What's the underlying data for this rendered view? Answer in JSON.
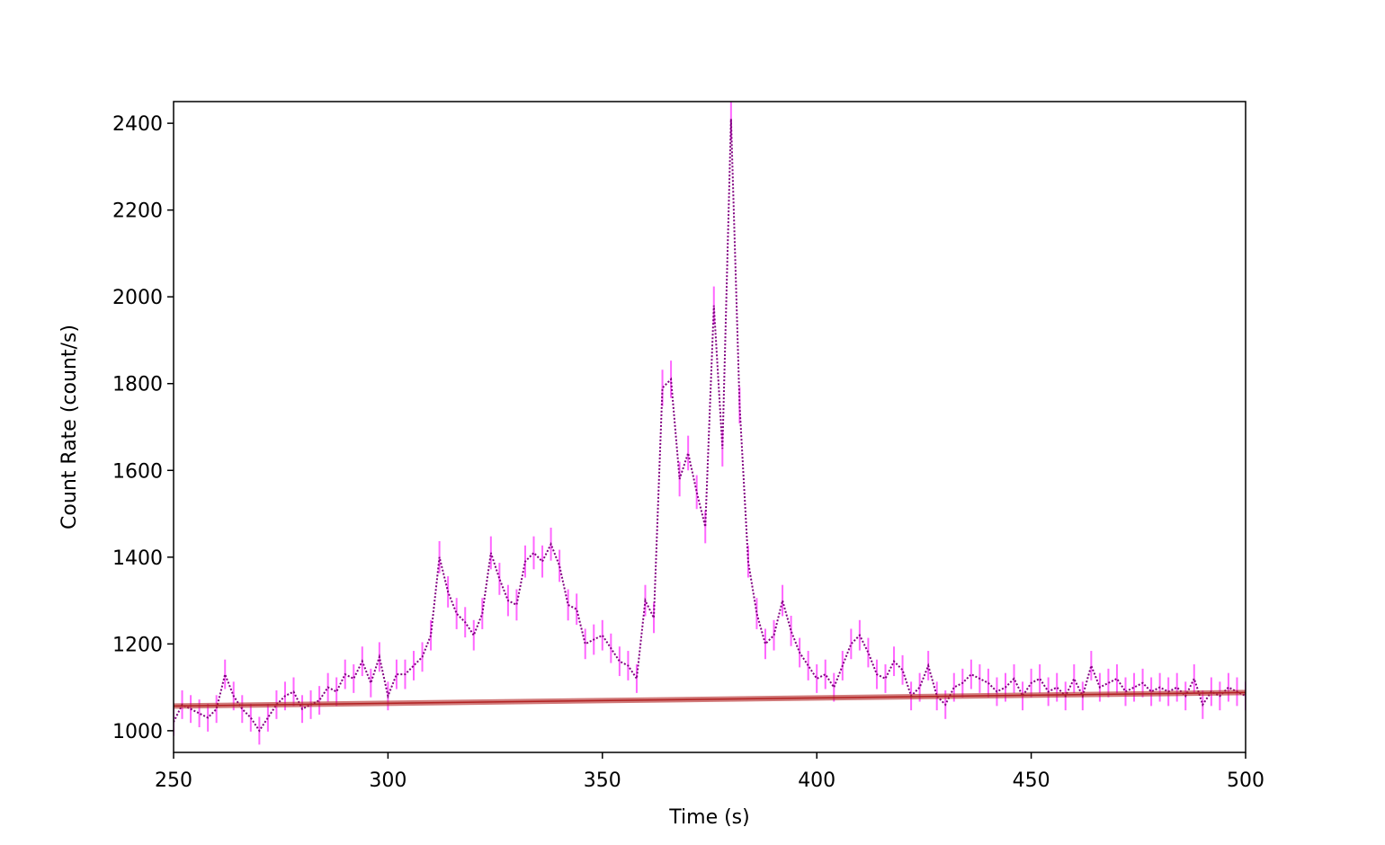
{
  "chart_data": {
    "type": "line",
    "xlabel": "Time (s)",
    "ylabel": "Count Rate (count/s)",
    "xlim": [
      250,
      500
    ],
    "ylim": [
      950,
      2450
    ],
    "xticks": [
      250,
      300,
      350,
      400,
      450,
      500
    ],
    "yticks": [
      1000,
      1200,
      1400,
      1600,
      1800,
      2000,
      2200,
      2400
    ],
    "series": [
      {
        "color": "#800080",
        "error_color": "#ff66ff",
        "line_style": "dotted",
        "x": [
          250,
          252,
          254,
          256,
          258,
          260,
          262,
          264,
          266,
          268,
          270,
          272,
          274,
          276,
          278,
          280,
          282,
          284,
          286,
          288,
          290,
          292,
          294,
          296,
          298,
          300,
          302,
          304,
          306,
          308,
          310,
          312,
          314,
          316,
          318,
          320,
          322,
          324,
          326,
          328,
          330,
          332,
          334,
          336,
          338,
          340,
          342,
          344,
          346,
          348,
          350,
          352,
          354,
          356,
          358,
          360,
          362,
          364,
          366,
          368,
          370,
          372,
          374,
          376,
          378,
          380,
          382,
          384,
          386,
          388,
          390,
          392,
          394,
          396,
          398,
          400,
          402,
          404,
          406,
          408,
          410,
          412,
          414,
          416,
          418,
          420,
          422,
          424,
          426,
          428,
          430,
          432,
          434,
          436,
          438,
          440,
          442,
          444,
          446,
          448,
          450,
          452,
          454,
          456,
          458,
          460,
          462,
          464,
          466,
          468,
          470,
          472,
          474,
          476,
          478,
          480,
          482,
          484,
          486,
          488,
          490,
          492,
          494,
          496,
          498,
          500
        ],
        "values": [
          1020,
          1060,
          1050,
          1040,
          1030,
          1050,
          1130,
          1080,
          1050,
          1030,
          1000,
          1030,
          1060,
          1080,
          1090,
          1050,
          1060,
          1070,
          1100,
          1090,
          1130,
          1120,
          1160,
          1110,
          1170,
          1080,
          1130,
          1130,
          1150,
          1170,
          1220,
          1400,
          1320,
          1270,
          1250,
          1220,
          1270,
          1410,
          1350,
          1300,
          1290,
          1390,
          1410,
          1390,
          1430,
          1380,
          1290,
          1280,
          1200,
          1210,
          1220,
          1190,
          1160,
          1150,
          1120,
          1300,
          1260,
          1790,
          1810,
          1580,
          1640,
          1550,
          1470,
          1980,
          1650,
          2410,
          1750,
          1390,
          1270,
          1200,
          1220,
          1300,
          1230,
          1180,
          1150,
          1120,
          1130,
          1100,
          1150,
          1200,
          1220,
          1180,
          1130,
          1120,
          1160,
          1140,
          1080,
          1100,
          1150,
          1080,
          1060,
          1100,
          1110,
          1130,
          1120,
          1110,
          1090,
          1100,
          1120,
          1080,
          1110,
          1120,
          1090,
          1100,
          1080,
          1120,
          1080,
          1150,
          1100,
          1110,
          1120,
          1090,
          1100,
          1110,
          1090,
          1100,
          1090,
          1100,
          1080,
          1120,
          1060,
          1090,
          1080,
          1100,
          1090,
          1080
        ],
        "errors": [
          32,
          33,
          32,
          32,
          32,
          32,
          34,
          33,
          32,
          32,
          32,
          32,
          33,
          33,
          33,
          32,
          33,
          33,
          33,
          33,
          34,
          33,
          34,
          33,
          34,
          33,
          34,
          34,
          34,
          34,
          35,
          37,
          36,
          36,
          35,
          35,
          36,
          38,
          37,
          36,
          36,
          37,
          38,
          37,
          38,
          37,
          36,
          36,
          35,
          35,
          35,
          34,
          34,
          34,
          33,
          36,
          35,
          42,
          43,
          40,
          40,
          39,
          38,
          44,
          41,
          49,
          42,
          37,
          36,
          35,
          35,
          36,
          35,
          34,
          34,
          33,
          34,
          33,
          34,
          35,
          35,
          34,
          34,
          33,
          34,
          34,
          33,
          33,
          34,
          33,
          33,
          33,
          33,
          34,
          33,
          33,
          33,
          33,
          33,
          33,
          33,
          33,
          33,
          33,
          33,
          33,
          33,
          34,
          33,
          33,
          33,
          33,
          33,
          33,
          33,
          33,
          33,
          33,
          33,
          33,
          33,
          33,
          33,
          33,
          33,
          33
        ]
      },
      {
        "color": "#b22222",
        "line_style": "solid",
        "x": [
          250,
          500
        ],
        "values": [
          1057,
          1088
        ]
      }
    ]
  }
}
